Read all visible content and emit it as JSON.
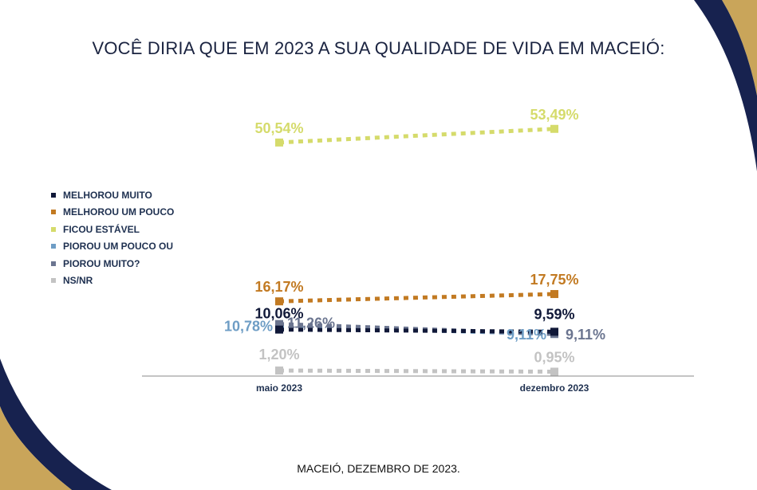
{
  "title": "VOCÊ DIRIA QUE EM 2023 A SUA QUALIDADE DE VIDA EM MACEIÓ:",
  "footer": "MACEIÓ, DEZEMBRO DE 2023.",
  "chart_data": {
    "type": "line",
    "categories": [
      "maio 2023",
      "dezembro 2023"
    ],
    "ylim": [
      0,
      70
    ],
    "grid": false,
    "legend_position": "left",
    "series": [
      {
        "name": "MELHOROU MUITO",
        "values": [
          10.06,
          9.59
        ],
        "labels": [
          "10,06%",
          "9,59%"
        ],
        "color": "#101838"
      },
      {
        "name": "MELHOROU UM POUCO",
        "values": [
          16.17,
          17.75
        ],
        "labels": [
          "16,17%",
          "17,75%"
        ],
        "color": "#c27a22"
      },
      {
        "name": "FICOU ESTÁVEL",
        "values": [
          50.54,
          53.49
        ],
        "labels": [
          "50,54%",
          "53,49%"
        ],
        "color": "#d5db6b"
      },
      {
        "name": "PIOROU UM POUCO OU",
        "values": [
          10.78,
          9.11
        ],
        "labels": [
          "10,78%",
          "9,11%"
        ],
        "color": "#6e9dc5"
      },
      {
        "name": "PIOROU MUITO?",
        "values": [
          11.26,
          9.11
        ],
        "labels": [
          "11,26%",
          "9,11%"
        ],
        "color": "#6b7590"
      },
      {
        "name": "NS/NR",
        "values": [
          1.2,
          0.95
        ],
        "labels": [
          "1,20%",
          "0,95%"
        ],
        "color": "#c3c3c3"
      }
    ]
  }
}
